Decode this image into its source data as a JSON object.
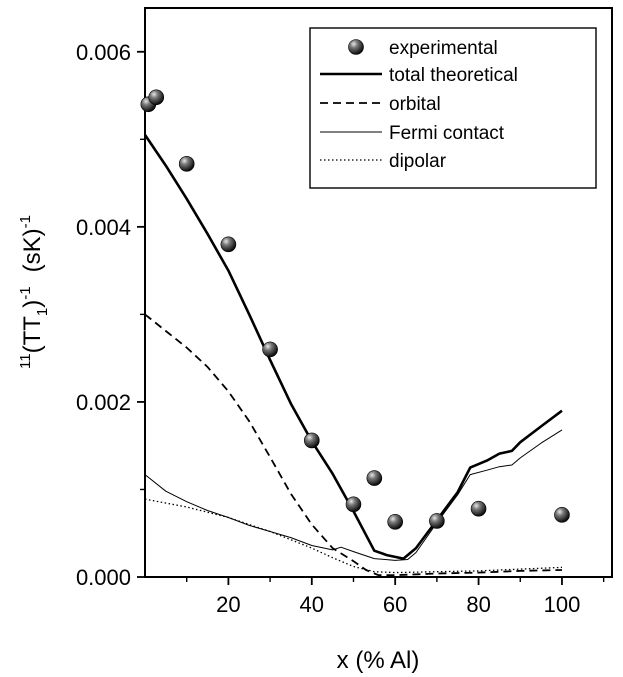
{
  "chart_data": {
    "type": "line",
    "xlabel": "x (% Al)",
    "ylabel": {
      "prefix": "11",
      "main": "(TT",
      "sub": "1",
      "close": ")",
      "exp1": "-1",
      "unit": "(sK)",
      "exp2": "-1"
    },
    "xlim": [
      0,
      112
    ],
    "ylim": [
      0,
      0.0065
    ],
    "x_ticks": [
      {
        "value": 20,
        "label": "20"
      },
      {
        "value": 40,
        "label": "40"
      },
      {
        "value": 60,
        "label": "60"
      },
      {
        "value": 80,
        "label": "80"
      },
      {
        "value": 100,
        "label": "100"
      }
    ],
    "x_minor_ticks": [
      10,
      30,
      50,
      70,
      90,
      110
    ],
    "y_ticks": [
      {
        "value": 0.0,
        "label": "0.000"
      },
      {
        "value": 0.002,
        "label": "0.002"
      },
      {
        "value": 0.004,
        "label": "0.004"
      },
      {
        "value": 0.006,
        "label": "0.006"
      }
    ],
    "y_minor_ticks": [
      0.001,
      0.003,
      0.005
    ],
    "legend_position": "top-right",
    "series": [
      {
        "name": "experimental",
        "kind": "scatter",
        "marker": "sphere",
        "points": [
          [
            0.8,
            0.0054
          ],
          [
            2.7,
            0.00548
          ],
          [
            10,
            0.00472
          ],
          [
            20,
            0.0038
          ],
          [
            30,
            0.0026
          ],
          [
            40,
            0.00156
          ],
          [
            50,
            0.00083
          ],
          [
            55,
            0.00113
          ],
          [
            60,
            0.00063
          ],
          [
            70,
            0.00064
          ],
          [
            80,
            0.00078
          ],
          [
            100,
            0.00071
          ]
        ]
      },
      {
        "name": "total theoretical",
        "kind": "line",
        "style": "thick",
        "points": [
          [
            0,
            0.00505
          ],
          [
            5,
            0.0047
          ],
          [
            10,
            0.00432
          ],
          [
            15,
            0.00392
          ],
          [
            20,
            0.0035
          ],
          [
            25,
            0.003
          ],
          [
            30,
            0.00248
          ],
          [
            35,
            0.00198
          ],
          [
            40,
            0.00155
          ],
          [
            45,
            0.00118
          ],
          [
            50,
            0.00075
          ],
          [
            55,
            0.0003
          ],
          [
            58,
            0.00025
          ],
          [
            62,
            0.00021
          ],
          [
            65,
            0.00033
          ],
          [
            70,
            0.00065
          ],
          [
            75,
            0.00097
          ],
          [
            78,
            0.00125
          ],
          [
            82,
            0.00133
          ],
          [
            85,
            0.00141
          ],
          [
            88,
            0.00144
          ],
          [
            90,
            0.00154
          ],
          [
            95,
            0.00172
          ],
          [
            100,
            0.0019
          ]
        ]
      },
      {
        "name": "orbital",
        "kind": "line",
        "style": "dashed",
        "points": [
          [
            0,
            0.003
          ],
          [
            5,
            0.00281
          ],
          [
            10,
            0.00262
          ],
          [
            15,
            0.0024
          ],
          [
            20,
            0.00212
          ],
          [
            25,
            0.00178
          ],
          [
            30,
            0.00137
          ],
          [
            35,
            0.00095
          ],
          [
            40,
            0.0006
          ],
          [
            45,
            0.00033
          ],
          [
            50,
            0.00018
          ],
          [
            53,
            8e-05
          ],
          [
            56,
            2e-05
          ],
          [
            60,
            2e-05
          ],
          [
            70,
            4e-05
          ],
          [
            80,
            5e-05
          ],
          [
            90,
            7e-05
          ],
          [
            100,
            8e-05
          ]
        ]
      },
      {
        "name": "Fermi contact",
        "kind": "line",
        "style": "thin",
        "points": [
          [
            0,
            0.00117
          ],
          [
            5,
            0.00098
          ],
          [
            10,
            0.00086
          ],
          [
            15,
            0.00076
          ],
          [
            20,
            0.00068
          ],
          [
            25,
            0.00059
          ],
          [
            30,
            0.00052
          ],
          [
            35,
            0.00045
          ],
          [
            40,
            0.00036
          ],
          [
            45,
            0.00031
          ],
          [
            47,
            0.00034
          ],
          [
            50,
            0.00029
          ],
          [
            55,
            0.00021
          ],
          [
            60,
            0.00019
          ],
          [
            63,
            0.0002
          ],
          [
            65,
            0.00028
          ],
          [
            70,
            0.00062
          ],
          [
            75,
            0.00094
          ],
          [
            78,
            0.00117
          ],
          [
            82,
            0.00122
          ],
          [
            85,
            0.00126
          ],
          [
            88,
            0.00128
          ],
          [
            90,
            0.00136
          ],
          [
            95,
            0.00153
          ],
          [
            100,
            0.00168
          ]
        ]
      },
      {
        "name": "dipolar",
        "kind": "line",
        "style": "dotted",
        "points": [
          [
            0,
            0.00089
          ],
          [
            10,
            0.0008
          ],
          [
            20,
            0.00068
          ],
          [
            30,
            0.00052
          ],
          [
            40,
            0.00033
          ],
          [
            45,
            0.00022
          ],
          [
            50,
            0.00012
          ],
          [
            55,
            6e-05
          ],
          [
            60,
            5e-05
          ],
          [
            70,
            6e-05
          ],
          [
            80,
            7e-05
          ],
          [
            90,
            9e-05
          ],
          [
            100,
            0.00011
          ]
        ]
      }
    ]
  }
}
